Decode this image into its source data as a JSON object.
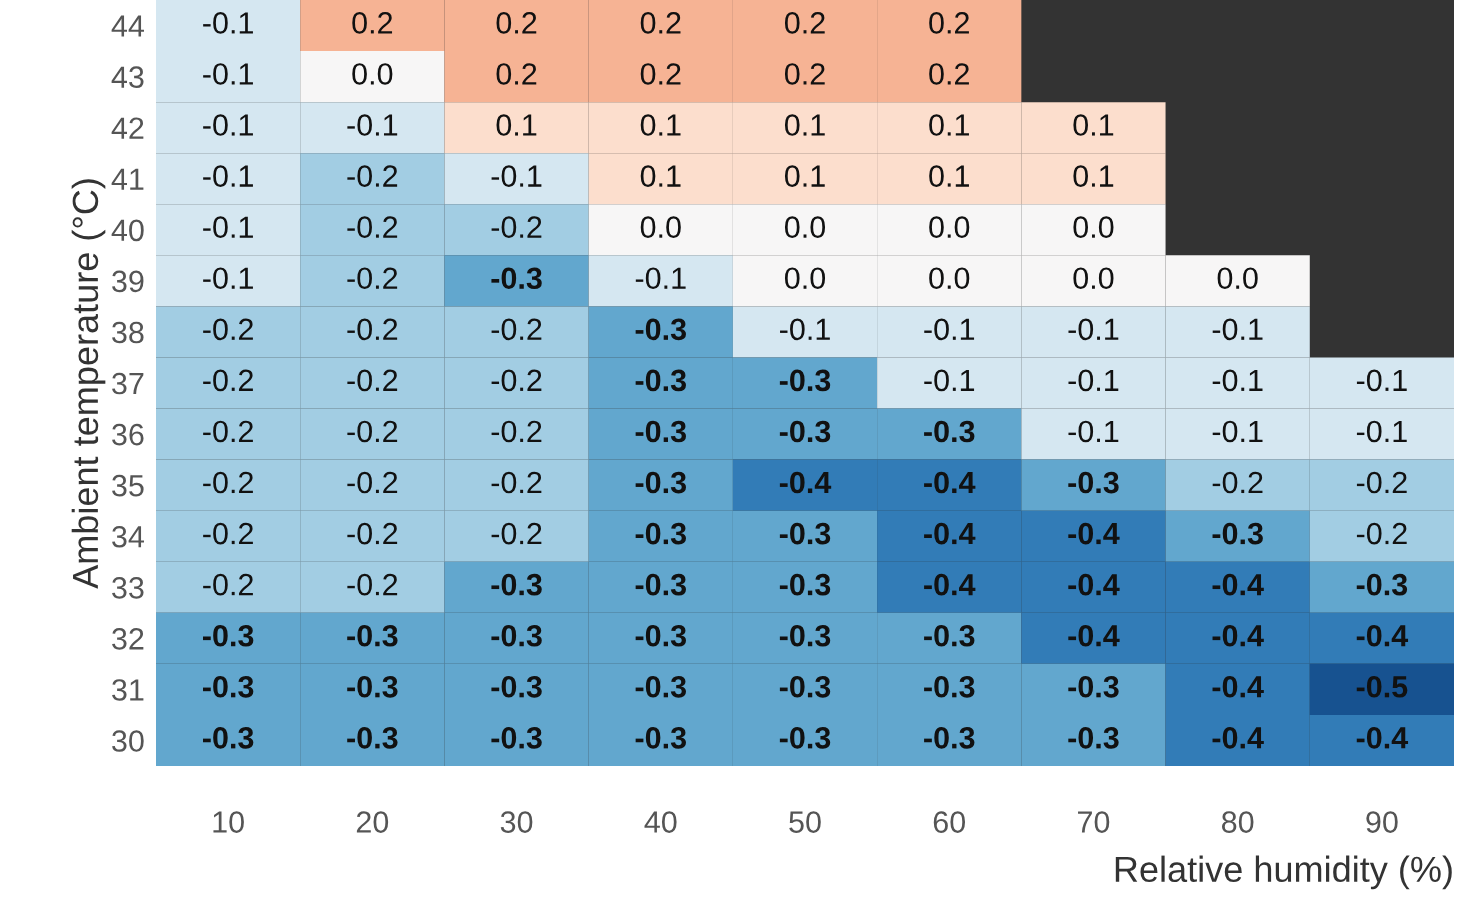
{
  "chart_data": {
    "type": "heatmap",
    "xlabel": "Relative humidity (%)",
    "ylabel": "Ambient temperature (°C)",
    "categories": [
      "10",
      "20",
      "30",
      "40",
      "50",
      "60",
      "70",
      "80",
      "90"
    ],
    "y_categories": [
      "44",
      "43",
      "42",
      "41",
      "40",
      "39",
      "38",
      "37",
      "36",
      "35",
      "34",
      "33",
      "32",
      "31",
      "30"
    ],
    "cells": [
      [
        -0.1,
        0.2,
        0.2,
        0.2,
        0.2,
        0.2,
        null,
        null,
        null
      ],
      [
        -0.1,
        0.0,
        0.2,
        0.2,
        0.2,
        0.2,
        null,
        null,
        null
      ],
      [
        -0.1,
        -0.1,
        0.1,
        0.1,
        0.1,
        0.1,
        0.1,
        null,
        null
      ],
      [
        -0.1,
        -0.2,
        -0.1,
        0.1,
        0.1,
        0.1,
        0.1,
        null,
        null
      ],
      [
        -0.1,
        -0.2,
        -0.2,
        0.0,
        0.0,
        0.0,
        0.0,
        null,
        null
      ],
      [
        -0.1,
        -0.2,
        -0.3,
        -0.1,
        0.0,
        0.0,
        0.0,
        0.0,
        null
      ],
      [
        -0.2,
        -0.2,
        -0.2,
        -0.3,
        -0.1,
        -0.1,
        -0.1,
        -0.1,
        null
      ],
      [
        -0.2,
        -0.2,
        -0.2,
        -0.3,
        -0.3,
        -0.1,
        -0.1,
        -0.1,
        -0.1
      ],
      [
        -0.2,
        -0.2,
        -0.2,
        -0.3,
        -0.3,
        -0.3,
        -0.1,
        -0.1,
        -0.1
      ],
      [
        -0.2,
        -0.2,
        -0.2,
        -0.3,
        -0.4,
        -0.4,
        -0.3,
        -0.2,
        -0.2
      ],
      [
        -0.2,
        -0.2,
        -0.2,
        -0.3,
        -0.3,
        -0.4,
        -0.4,
        -0.3,
        -0.2
      ],
      [
        -0.2,
        -0.2,
        -0.3,
        -0.3,
        -0.3,
        -0.4,
        -0.4,
        -0.4,
        -0.3
      ],
      [
        -0.3,
        -0.3,
        -0.3,
        -0.3,
        -0.3,
        -0.3,
        -0.4,
        -0.4,
        -0.4
      ],
      [
        -0.3,
        -0.3,
        -0.3,
        -0.3,
        -0.3,
        -0.3,
        -0.3,
        -0.4,
        -0.5
      ],
      [
        -0.3,
        -0.3,
        -0.3,
        -0.3,
        -0.3,
        -0.3,
        -0.3,
        -0.4,
        -0.4
      ]
    ],
    "cell_labels": [
      [
        "-0.1",
        "0.2",
        "0.2",
        "0.2",
        "0.2",
        "0.2",
        null,
        null,
        null
      ],
      [
        "-0.1",
        "0.0",
        "0.2",
        "0.2",
        "0.2",
        "0.2",
        null,
        null,
        null
      ],
      [
        "-0.1",
        "-0.1",
        "0.1",
        "0.1",
        "0.1",
        "0.1",
        "0.1",
        null,
        null
      ],
      [
        "-0.1",
        "-0.2",
        "-0.1",
        "0.1",
        "0.1",
        "0.1",
        "0.1",
        null,
        null
      ],
      [
        "-0.1",
        "-0.2",
        "-0.2",
        "0.0",
        "0.0",
        "0.0",
        "0.0",
        null,
        null
      ],
      [
        "-0.1",
        "-0.2",
        "-0.3",
        "-0.1",
        "0.0",
        "0.0",
        "0.0",
        "0.0",
        null
      ],
      [
        "-0.2",
        "-0.2",
        "-0.2",
        "-0.3",
        "-0.1",
        "-0.1",
        "-0.1",
        "-0.1",
        null
      ],
      [
        "-0.2",
        "-0.2",
        "-0.2",
        "-0.3",
        "-0.3",
        "-0.1",
        "-0.1",
        "-0.1",
        "-0.1"
      ],
      [
        "-0.2",
        "-0.2",
        "-0.2",
        "-0.3",
        "-0.3",
        "-0.3",
        "-0.1",
        "-0.1",
        "-0.1"
      ],
      [
        "-0.2",
        "-0.2",
        "-0.2",
        "-0.3",
        "-0.4",
        "-0.4",
        "-0.3",
        "-0.2",
        "-0.2"
      ],
      [
        "-0.2",
        "-0.2",
        "-0.2",
        "-0.3",
        "-0.3",
        "-0.4",
        "-0.4",
        "-0.3",
        "-0.2"
      ],
      [
        "-0.2",
        "-0.2",
        "-0.3",
        "-0.3",
        "-0.3",
        "-0.4",
        "-0.4",
        "-0.4",
        "-0.3"
      ],
      [
        "-0.3",
        "-0.3",
        "-0.3",
        "-0.3",
        "-0.3",
        "-0.3",
        "-0.4",
        "-0.4",
        "-0.4"
      ],
      [
        "-0.3",
        "-0.3",
        "-0.3",
        "-0.3",
        "-0.3",
        "-0.3",
        "-0.3",
        "-0.4",
        "-0.5"
      ],
      [
        "-0.3",
        "-0.3",
        "-0.3",
        "-0.3",
        "-0.3",
        "-0.3",
        "-0.3",
        "-0.4",
        "-0.4"
      ]
    ],
    "data_labels": true
  }
}
